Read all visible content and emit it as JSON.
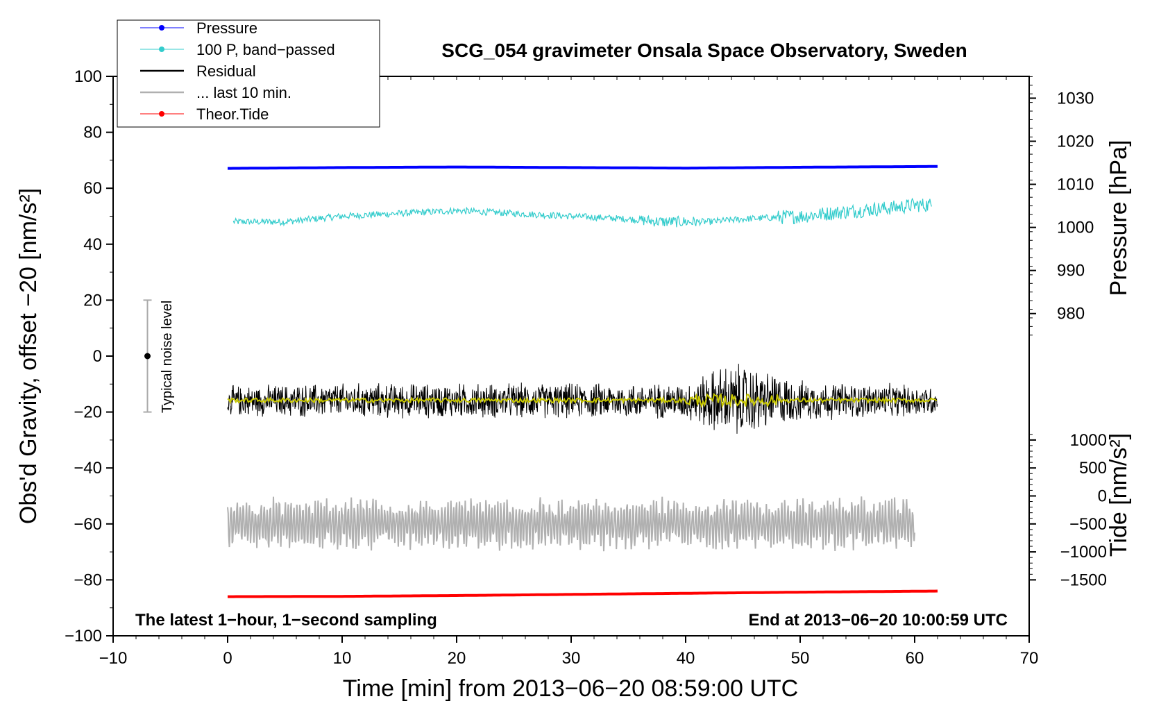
{
  "chart_data": {
    "type": "line",
    "title": "SCG_054 gravimeter Onsala Space Observatory, Sweden",
    "xlabel": "Time [min] from 2013−06−20 08:59:00 UTC",
    "ylabel": "Obs'd Gravity, offset −20 [nm/s²]",
    "ylabel_right_pressure": "Pressure [hPa]",
    "ylabel_right_tide": "Tide [nm/s²]",
    "xlim": [
      -10,
      70
    ],
    "ylim": [
      -100,
      100
    ],
    "x_ticks": [
      -10,
      0,
      10,
      20,
      30,
      40,
      50,
      60,
      70
    ],
    "x_tick_labels": [
      "−10",
      "0",
      "10",
      "20",
      "30",
      "40",
      "50",
      "60",
      "70"
    ],
    "y_ticks": [
      -100,
      -80,
      -60,
      -40,
      -20,
      0,
      20,
      40,
      60,
      80,
      100
    ],
    "y_tick_labels": [
      "−100",
      "−80",
      "−60",
      "−40",
      "−20",
      "0",
      "20",
      "40",
      "60",
      "80",
      "100"
    ],
    "pressure_axis": {
      "ticks": [
        980,
        990,
        1000,
        1010,
        1020,
        1030
      ],
      "tick_labels": [
        "980",
        "990",
        "1000",
        "1010",
        "1020",
        "1030"
      ],
      "gravity_at_1000": 46,
      "gravity_per_hpa": 1.54
    },
    "tide_axis": {
      "ticks": [
        -1500,
        -1000,
        -500,
        0,
        500,
        1000
      ],
      "tick_labels": [
        "−1500",
        "−1000",
        "−500",
        "0",
        "500",
        "1000"
      ],
      "gravity_at_0": -50,
      "gravity_per_unit": 0.02
    },
    "annotations": {
      "left_corner": "The latest 1−hour, 1−second sampling",
      "right_corner": "End at 2013−06−20 10:00:59 UTC",
      "noise_label": "Typical noise level",
      "noise_bar": {
        "x": -7,
        "center": 0,
        "low": -20,
        "high": 20
      }
    },
    "legend": {
      "position": "top-left",
      "entries": [
        {
          "label": "Pressure",
          "color": "#0000ff",
          "marker": true
        },
        {
          "label": "100 P, band−passed",
          "color": "#33cccc",
          "marker": true
        },
        {
          "label": "Residual",
          "color": "#000000",
          "marker": false
        },
        {
          "label": "... last 10 min.",
          "color": "#b0b0b0",
          "marker": false
        },
        {
          "label": "Theor.Tide",
          "color": "#ff0000",
          "marker": true
        }
      ]
    },
    "series": [
      {
        "name": "Pressure",
        "color": "#0000ff",
        "x": [
          0,
          10,
          20,
          30,
          40,
          50,
          62
        ],
        "y": [
          67.1,
          67.4,
          67.6,
          67.4,
          67.2,
          67.5,
          67.8
        ]
      },
      {
        "name": "100 P, band−passed",
        "color": "#33cccc",
        "x": [
          0.5,
          5,
          10,
          15,
          20,
          25,
          30,
          35,
          38,
          42,
          45,
          50,
          55,
          58,
          60,
          61.5
        ],
        "y": [
          48,
          48,
          50,
          51,
          52,
          51,
          50,
          49,
          48,
          48,
          49,
          50,
          52,
          53,
          54,
          54
        ]
      },
      {
        "name": "Residual",
        "color": "#000000",
        "x": [
          0,
          10,
          20,
          30,
          40,
          43,
          45,
          47,
          50,
          55,
          62
        ],
        "y": [
          -16,
          -16,
          -16,
          -16,
          -16,
          -16,
          -16,
          -16,
          -16,
          -16,
          -16
        ],
        "spread": [
          6,
          7,
          7,
          7,
          7,
          14,
          15,
          12,
          8,
          7,
          6
        ]
      },
      {
        "name": "Residual (smoothed)",
        "color": "#c8c800",
        "x": [
          0,
          62
        ],
        "y": [
          -15.8,
          -15.8
        ]
      },
      {
        "name": "... last 10 min.",
        "color": "#b0b0b0",
        "x": [
          0,
          60
        ],
        "y": [
          -60,
          -60
        ],
        "spread": [
          9,
          9
        ]
      },
      {
        "name": "Theor.Tide",
        "color": "#ff0000",
        "x": [
          0,
          10,
          20,
          30,
          40,
          50,
          62
        ],
        "y": [
          -86,
          -85.9,
          -85.6,
          -85.2,
          -84.8,
          -84.4,
          -84
        ]
      }
    ]
  }
}
